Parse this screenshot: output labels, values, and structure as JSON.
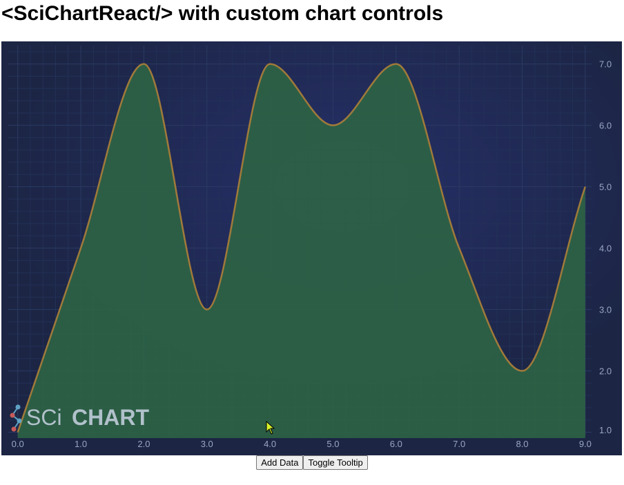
{
  "page": {
    "title": "<SciChartReact/> with custom chart controls"
  },
  "controls": {
    "add_data_label": "Add Data",
    "toggle_tooltip_label": "Toggle Tooltip"
  },
  "watermark": {
    "text_thin": "SCi",
    "text_bold": "CHART"
  },
  "colors": {
    "background": "#1c2544",
    "grid_major": "#2b3a63",
    "grid_minor": "#223057",
    "fill": "#2d6445",
    "stroke": "#a07a3a",
    "tick_text": "#9aa6c4",
    "watermark": "#c9d2e3"
  },
  "chart_data": {
    "type": "area",
    "title": "",
    "xlabel": "",
    "ylabel": "",
    "xlim": [
      -0.15,
      9.1
    ],
    "ylim": [
      0.95,
      7.3
    ],
    "x_ticks": [
      "0.0",
      "1.0",
      "2.0",
      "3.0",
      "4.0",
      "5.0",
      "6.0",
      "7.0",
      "8.0",
      "9.0"
    ],
    "y_ticks": [
      "1.0",
      "2.0",
      "3.0",
      "4.0",
      "5.0",
      "6.0",
      "7.0"
    ],
    "y_axis_position": "right",
    "grid": true,
    "x": [
      0,
      1,
      2,
      3,
      4,
      5,
      6,
      7,
      8,
      9
    ],
    "series": [
      {
        "values": [
          1,
          4,
          7,
          3,
          7,
          6,
          7,
          4,
          2,
          5
        ]
      }
    ]
  }
}
